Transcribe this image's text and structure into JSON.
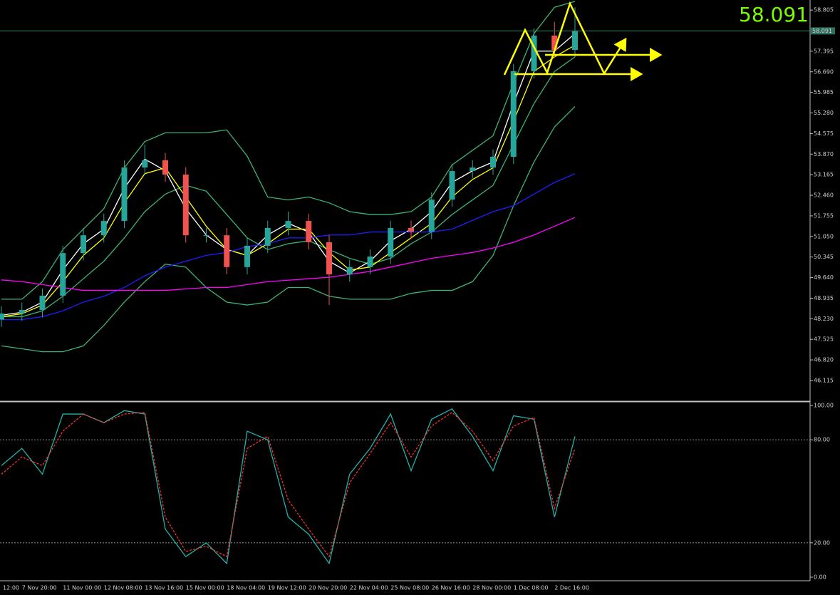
{
  "chart_data": [
    {
      "type": "candlestick",
      "current_price": 58.091,
      "open": [
        48.2,
        48.41,
        48.53,
        49.02,
        50.48,
        51.09,
        51.58,
        53.41,
        53.66,
        53.17,
        51.09,
        51.09,
        50.0,
        50.73,
        51.34,
        51.58,
        50.85,
        49.75,
        50.0,
        50.36,
        51.34,
        51.21,
        52.31,
        53.29,
        53.41,
        53.78,
        56.71,
        57.93,
        57.44
      ],
      "high": [
        48.66,
        48.78,
        49.27,
        50.73,
        51.34,
        51.83,
        53.66,
        54.2,
        53.91,
        53.42,
        51.34,
        51.34,
        50.98,
        51.59,
        51.9,
        51.83,
        51.1,
        50.25,
        50.61,
        51.59,
        51.59,
        52.56,
        53.54,
        53.66,
        54.03,
        56.96,
        58.18,
        58.4,
        58.9
      ],
      "low": [
        47.95,
        48.16,
        48.28,
        48.77,
        50.23,
        50.84,
        51.33,
        53.16,
        52.92,
        50.84,
        50.84,
        49.75,
        49.75,
        50.48,
        51.09,
        50.6,
        48.7,
        49.5,
        49.75,
        50.11,
        50.96,
        50.96,
        52.06,
        53.04,
        53.16,
        53.53,
        56.46,
        57.19,
        57.19
      ],
      "close": [
        48.41,
        48.53,
        49.02,
        50.48,
        51.09,
        51.58,
        53.41,
        53.66,
        53.17,
        51.09,
        51.09,
        50.0,
        50.73,
        51.34,
        51.58,
        50.85,
        49.75,
        50.0,
        50.36,
        51.34,
        51.21,
        52.31,
        53.29,
        53.41,
        53.78,
        56.71,
        57.93,
        57.44,
        58.09
      ],
      "up_color": "#26a69a",
      "down_color": "#ef5350",
      "series": [
        {
          "color": "#3cb371",
          "values": [
            48.9,
            48.9,
            49.5,
            50.6,
            51.3,
            52.0,
            53.4,
            54.3,
            54.6,
            54.6,
            54.6,
            54.7,
            53.8,
            52.4,
            52.3,
            52.4,
            52.2,
            51.9,
            51.8,
            51.8,
            51.9,
            52.4,
            53.5,
            54.0,
            54.5,
            56.3,
            58.0,
            58.9,
            59.1
          ]
        },
        {
          "color": "#3cb371",
          "values": [
            48.3,
            48.3,
            48.5,
            49.0,
            49.6,
            50.2,
            51.0,
            51.9,
            52.5,
            52.8,
            52.6,
            51.8,
            51.0,
            50.6,
            50.8,
            50.9,
            50.6,
            50.3,
            50.1,
            50.3,
            50.8,
            51.2,
            51.8,
            52.3,
            52.8,
            54.2,
            55.6,
            56.7,
            57.2
          ]
        },
        {
          "color": "#3cb371",
          "values": [
            47.3,
            47.2,
            47.1,
            47.1,
            47.3,
            48.0,
            48.8,
            49.5,
            50.1,
            50.0,
            49.3,
            48.8,
            48.7,
            48.8,
            49.3,
            49.3,
            49.0,
            48.9,
            48.9,
            48.9,
            49.1,
            49.2,
            49.2,
            49.5,
            50.4,
            52.1,
            53.6,
            54.8,
            55.5
          ]
        },
        {
          "color": "#ffffff",
          "values": [
            48.35,
            48.45,
            48.8,
            49.9,
            50.8,
            51.3,
            52.7,
            53.7,
            53.3,
            52.0,
            51.1,
            50.6,
            50.4,
            51.1,
            51.5,
            51.2,
            50.2,
            49.8,
            50.2,
            50.9,
            51.3,
            51.9,
            52.9,
            53.3,
            53.6,
            55.6,
            57.4,
            57.4,
            58.0
          ]
        },
        {
          "color": "#ffff00",
          "values": [
            48.3,
            48.4,
            48.7,
            49.5,
            50.4,
            51.0,
            52.2,
            53.2,
            53.4,
            52.4,
            51.4,
            50.6,
            50.4,
            50.8,
            51.3,
            51.3,
            50.5,
            49.9,
            50.0,
            50.5,
            51.0,
            51.5,
            52.4,
            53.0,
            53.4,
            55.0,
            56.7,
            57.2,
            57.6
          ]
        },
        {
          "color": "#1e1eff",
          "values": [
            48.2,
            48.2,
            48.3,
            48.5,
            48.8,
            49.0,
            49.3,
            49.7,
            50.0,
            50.2,
            50.4,
            50.5,
            50.7,
            50.8,
            51.0,
            51.0,
            51.1,
            51.1,
            51.2,
            51.2,
            51.2,
            51.2,
            51.3,
            51.6,
            51.9,
            52.1,
            52.5,
            52.9,
            53.2
          ]
        },
        {
          "color": "#ff00ff",
          "values": [
            49.56,
            49.5,
            49.4,
            49.3,
            49.2,
            49.2,
            49.2,
            49.2,
            49.2,
            49.25,
            49.3,
            49.3,
            49.4,
            49.5,
            49.55,
            49.6,
            49.65,
            49.75,
            49.85,
            50.0,
            50.15,
            50.3,
            50.4,
            50.5,
            50.65,
            50.85,
            51.1,
            51.4,
            51.7
          ]
        }
      ],
      "ylim": [
        45.43,
        59.15
      ],
      "yticks": [
        58.805,
        57.395,
        {
          "value": 56.69,
          "label": "56.690"
        },
        55.985,
        {
          "value": 55.28,
          "label": "55.280"
        },
        54.575,
        {
          "value": 53.87,
          "label": "53.870"
        },
        53.165,
        {
          "value": 52.46,
          "label": "52.460"
        },
        51.755,
        {
          "value": 51.05,
          "label": "51.050"
        },
        50.345,
        {
          "value": 49.64,
          "label": "49.640"
        },
        48.935,
        {
          "value": 48.23,
          "label": "48.230"
        },
        47.525,
        {
          "value": 46.82,
          "label": "46.820"
        },
        46.115
      ]
    },
    {
      "type": "line",
      "categories": [
        "12:00",
        "7 Nov 20:00",
        null,
        "11 Nov 00:00",
        null,
        "12 Nov 08:00",
        null,
        "13 Nov 16:00",
        null,
        "15 Nov 00:00",
        null,
        "18 Nov 04:00",
        null,
        "19 Nov 12:00",
        null,
        "20 Nov 20:00",
        null,
        "22 Nov 04:00",
        null,
        "25 Nov 08:00",
        null,
        "26 Nov 16:00",
        null,
        "28 Nov 00:00",
        null,
        "1 Dec 08:00",
        null,
        "2 Dec 16:00",
        null
      ],
      "series": [
        {
          "color": "#20b2aa",
          "dashed": false,
          "values": [
            65,
            75,
            60,
            95,
            95,
            90,
            97,
            95,
            28,
            12,
            20,
            8,
            85,
            80,
            35,
            25,
            8,
            60,
            75,
            95,
            62,
            92,
            98,
            82,
            62,
            94,
            92,
            35,
            82
          ]
        },
        {
          "color": "#ff3030",
          "dashed": true,
          "values": [
            60,
            70,
            65,
            85,
            95,
            90,
            95,
            96,
            35,
            15,
            18,
            12,
            75,
            82,
            45,
            28,
            12,
            55,
            72,
            90,
            70,
            88,
            96,
            85,
            68,
            88,
            93,
            40,
            75
          ]
        }
      ],
      "ylim": [
        0,
        100
      ],
      "yticks": [
        {
          "value": 100,
          "label": "100.00"
        },
        {
          "value": 80,
          "label": "80.00"
        },
        {
          "value": 20,
          "label": "20.00"
        },
        {
          "value": 0,
          "label": "0.00"
        }
      ],
      "grid": true
    }
  ]
}
